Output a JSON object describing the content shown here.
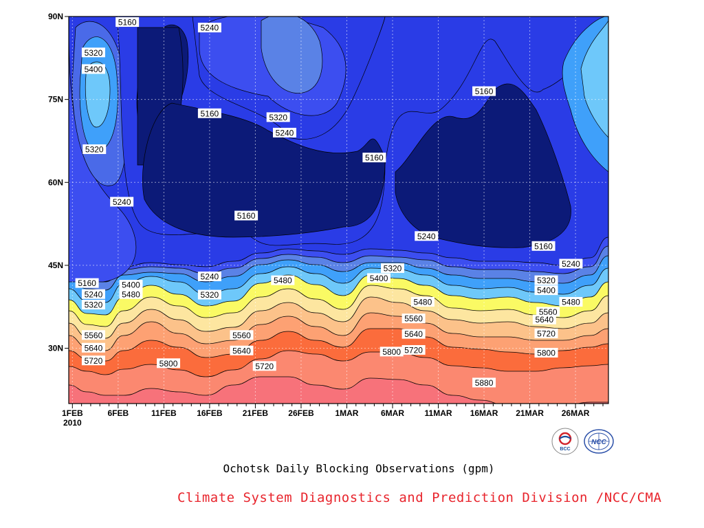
{
  "chart_data": {
    "type": "contour",
    "ylim": [
      20,
      90
    ],
    "y_ticks": [
      "30N",
      "45N",
      "60N",
      "75N",
      "90N"
    ],
    "x_ticks": [
      "1FEB",
      "6FEB",
      "11FEB",
      "16FEB",
      "21FEB",
      "26FEB",
      "1MAR",
      "6MAR",
      "11MAR",
      "16MAR",
      "21MAR",
      "26MAR"
    ],
    "x_year_label": "2010",
    "contour_levels": [
      5160,
      5240,
      5320,
      5400,
      5480,
      5560,
      5640,
      5720,
      5800,
      5880
    ],
    "contour_labels": [
      {
        "text": "5160",
        "x": 6,
        "lat": 89
      },
      {
        "text": "5240",
        "x": 15,
        "lat": 88
      },
      {
        "text": "5320",
        "x": 2.3,
        "lat": 83.5
      },
      {
        "text": "5400",
        "x": 2.3,
        "lat": 80.5
      },
      {
        "text": "5320",
        "x": 2.4,
        "lat": 66
      },
      {
        "text": "5240",
        "x": 5.4,
        "lat": 56.5
      },
      {
        "text": "5320",
        "x": 22.5,
        "lat": 71.8
      },
      {
        "text": "5240",
        "x": 23.2,
        "lat": 69
      },
      {
        "text": "5160",
        "x": 15,
        "lat": 72.5
      },
      {
        "text": "5160",
        "x": 45,
        "lat": 76.5
      },
      {
        "text": "5160",
        "x": 33,
        "lat": 64.5
      },
      {
        "text": "5160",
        "x": 19,
        "lat": 54
      },
      {
        "text": "5240",
        "x": 38.7,
        "lat": 50.3
      },
      {
        "text": "5160",
        "x": 51.5,
        "lat": 48.5
      },
      {
        "text": "5240",
        "x": 54.5,
        "lat": 45.3
      },
      {
        "text": "5320",
        "x": 35,
        "lat": 44.5
      },
      {
        "text": "5400",
        "x": 33.5,
        "lat": 42.7
      },
      {
        "text": "5480",
        "x": 23,
        "lat": 42.3
      },
      {
        "text": "5240",
        "x": 15,
        "lat": 43
      },
      {
        "text": "5320",
        "x": 15,
        "lat": 39.7
      },
      {
        "text": "5160",
        "x": 1.6,
        "lat": 41.8
      },
      {
        "text": "5240",
        "x": 2.3,
        "lat": 39.8
      },
      {
        "text": "5320",
        "x": 2.3,
        "lat": 37.9
      },
      {
        "text": "5400",
        "x": 6.4,
        "lat": 41.5
      },
      {
        "text": "5480",
        "x": 6.4,
        "lat": 39.8
      },
      {
        "text": "5320",
        "x": 51.8,
        "lat": 42.3
      },
      {
        "text": "5400",
        "x": 51.8,
        "lat": 40.5
      },
      {
        "text": "5480",
        "x": 54.5,
        "lat": 38.4
      },
      {
        "text": "5560",
        "x": 52,
        "lat": 36.6
      },
      {
        "text": "5640",
        "x": 51.6,
        "lat": 35.2
      },
      {
        "text": "5720",
        "x": 51.8,
        "lat": 32.7
      },
      {
        "text": "5800",
        "x": 51.8,
        "lat": 29.2
      },
      {
        "text": "5480",
        "x": 38.3,
        "lat": 38.4
      },
      {
        "text": "5560",
        "x": 37.3,
        "lat": 35.4
      },
      {
        "text": "5640",
        "x": 37.3,
        "lat": 32.6
      },
      {
        "text": "5720",
        "x": 37.3,
        "lat": 29.7
      },
      {
        "text": "5800",
        "x": 34.9,
        "lat": 29.4
      },
      {
        "text": "5880",
        "x": 45,
        "lat": 23.8
      },
      {
        "text": "5560",
        "x": 2.3,
        "lat": 32.4
      },
      {
        "text": "5640",
        "x": 2.3,
        "lat": 30.1
      },
      {
        "text": "5720",
        "x": 2.3,
        "lat": 27.8
      },
      {
        "text": "5800",
        "x": 10.5,
        "lat": 27.3
      },
      {
        "text": "5560",
        "x": 18.5,
        "lat": 32.4
      },
      {
        "text": "5640",
        "x": 18.5,
        "lat": 29.6
      },
      {
        "text": "5720",
        "x": 21,
        "lat": 26.8
      }
    ]
  },
  "caption": "Ochotsk Daily Blocking Observations (gpm)",
  "credit": "Climate System Diagnostics and Prediction Division /NCC/CMA",
  "logos": {
    "bcc_text": "BCC",
    "ncc_text": "NCC"
  }
}
